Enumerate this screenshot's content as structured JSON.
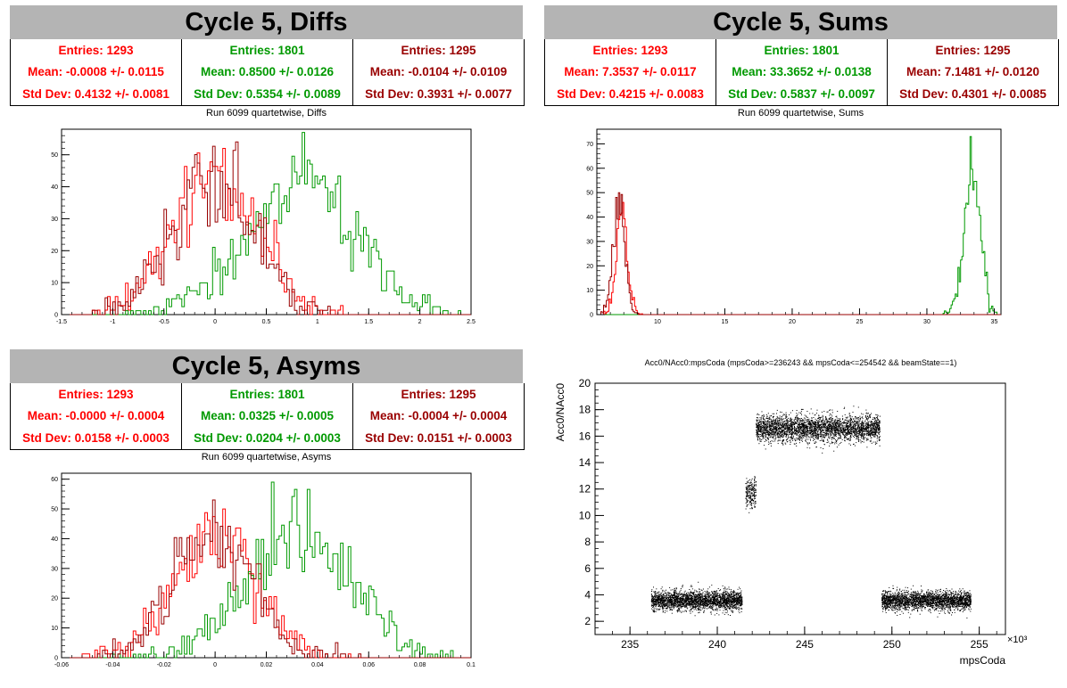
{
  "panels": {
    "diffs": {
      "title": "Cycle 5, Diffs",
      "stats": [
        {
          "entries": "Entries: 1293",
          "mean": "Mean: -0.0008 +/- 0.0115",
          "std": "Std Dev: 0.4132 +/- 0.0081"
        },
        {
          "entries": "Entries: 1801",
          "mean": "Mean: 0.8500 +/- 0.0126",
          "std": "Std Dev: 0.5354 +/- 0.0089"
        },
        {
          "entries": "Entries: 1295",
          "mean": "Mean: -0.0104 +/- 0.0109",
          "std": "Std Dev: 0.3931 +/- 0.0077"
        }
      ],
      "subtitle": "Run 6099 quartetwise, Diffs"
    },
    "sums": {
      "title": "Cycle 5, Sums",
      "stats": [
        {
          "entries": "Entries: 1293",
          "mean": "Mean: 7.3537 +/- 0.0117",
          "std": "Std Dev: 0.4215 +/- 0.0083"
        },
        {
          "entries": "Entries: 1801",
          "mean": "Mean: 33.3652 +/- 0.0138",
          "std": "Std Dev: 0.5837 +/- 0.0097"
        },
        {
          "entries": "Entries: 1295",
          "mean": "Mean: 7.1481 +/- 0.0120",
          "std": "Std Dev: 0.4301 +/- 0.0085"
        }
      ],
      "subtitle": "Run 6099 quartetwise, Sums"
    },
    "asyms": {
      "title": "Cycle 5, Asyms",
      "stats": [
        {
          "entries": "Entries: 1293",
          "mean": "Mean: -0.0000 +/- 0.0004",
          "std": "Std Dev: 0.0158 +/- 0.0003"
        },
        {
          "entries": "Entries: 1801",
          "mean": "Mean: 0.0325 +/- 0.0005",
          "std": "Std Dev: 0.0204 +/- 0.0003"
        },
        {
          "entries": "Entries: 1295",
          "mean": "Mean: -0.0004 +/- 0.0004",
          "std": "Std Dev: 0.0151 +/- 0.0003"
        }
      ],
      "subtitle": "Run 6099 quartetwise, Asyms"
    },
    "scatter": {
      "title": "Acc0/NAcc0:mpsCoda (mpsCoda>=236243 && mpsCoda<=254542 && beamState==1)"
    }
  },
  "colors": {
    "red": "#ff0000",
    "green": "#009900",
    "darkred": "#990000",
    "title_bg": "#b4b4b4"
  },
  "chart_data": [
    {
      "type": "histogram",
      "name": "diffs",
      "xlim": [
        -1.5,
        2.5
      ],
      "ylim": [
        0,
        58
      ],
      "xticks": [
        -1.5,
        -1,
        -0.5,
        0,
        0.5,
        1,
        1.5,
        2,
        2.5
      ],
      "xtick_labels": [
        "-1.5",
        "-1",
        "-0.5",
        "0",
        "0.5",
        "1",
        "1.5",
        "2",
        "2.5"
      ],
      "yticks": [
        0,
        10,
        20,
        30,
        40,
        50
      ],
      "grid": false,
      "series": [
        {
          "color": "#ff0000",
          "mean": -0.0008,
          "std": 0.4132,
          "entries": 1293,
          "bin_width": 0.025,
          "peak": 52
        },
        {
          "color": "#009900",
          "mean": 0.85,
          "std": 0.5354,
          "entries": 1801,
          "bin_width": 0.025,
          "peak": 57
        },
        {
          "color": "#990000",
          "mean": -0.0104,
          "std": 0.3931,
          "entries": 1295,
          "bin_width": 0.025,
          "peak": 54
        }
      ]
    },
    {
      "type": "histogram",
      "name": "sums",
      "xlim": [
        5.5,
        35.5
      ],
      "ylim": [
        0,
        76
      ],
      "xticks": [
        10,
        15,
        20,
        25,
        30,
        35
      ],
      "xtick_labels": [
        "10",
        "15",
        "20",
        "25",
        "30",
        "35"
      ],
      "yticks": [
        0,
        10,
        20,
        30,
        40,
        50,
        60,
        70
      ],
      "grid": false,
      "series": [
        {
          "color": "#ff0000",
          "mean": 7.3537,
          "std": 0.4215,
          "entries": 1293,
          "bin_width": 0.1,
          "peak": 46
        },
        {
          "color": "#009900",
          "mean": 33.3652,
          "std": 0.5837,
          "entries": 1801,
          "bin_width": 0.1,
          "peak": 73
        },
        {
          "color": "#990000",
          "mean": 7.1481,
          "std": 0.4301,
          "entries": 1295,
          "bin_width": 0.1,
          "peak": 50
        }
      ]
    },
    {
      "type": "histogram",
      "name": "asyms",
      "xlim": [
        -0.06,
        0.1
      ],
      "ylim": [
        0,
        62
      ],
      "xticks": [
        -0.06,
        -0.04,
        -0.02,
        0,
        0.02,
        0.04,
        0.06,
        0.08,
        0.1
      ],
      "xtick_labels": [
        "-0.06",
        "-0.04",
        "-0.02",
        "0",
        "0.02",
        "0.04",
        "0.06",
        "0.08",
        "0.1"
      ],
      "yticks": [
        0,
        10,
        20,
        30,
        40,
        50,
        60
      ],
      "grid": false,
      "series": [
        {
          "color": "#ff0000",
          "mean": 0.0,
          "std": 0.0158,
          "entries": 1293,
          "bin_width": 0.001,
          "peak": 50
        },
        {
          "color": "#009900",
          "mean": 0.0325,
          "std": 0.0204,
          "entries": 1801,
          "bin_width": 0.001,
          "peak": 59
        },
        {
          "color": "#990000",
          "mean": -0.0004,
          "std": 0.0151,
          "entries": 1295,
          "bin_width": 0.001,
          "peak": 53
        }
      ]
    },
    {
      "type": "scatter",
      "name": "scatter",
      "xlim": [
        233,
        256.5
      ],
      "ylim": [
        1,
        20
      ],
      "xticks": [
        235,
        240,
        245,
        250,
        255
      ],
      "xtick_labels": [
        "235",
        "240",
        "245",
        "250",
        "255"
      ],
      "yticks": [
        2,
        4,
        6,
        8,
        10,
        12,
        14,
        16,
        18,
        20
      ],
      "ytick_labels": [
        "2",
        "4",
        "6",
        "8",
        "10",
        "12",
        "14",
        "16",
        "18",
        "20"
      ],
      "xlabel": "mpsCoda",
      "ylabel": "Acc0/NAcc0",
      "x_exponent": "×10³",
      "grid": false,
      "clusters": [
        {
          "x_range": [
            236.2,
            241.4
          ],
          "y_mean": 3.6,
          "y_spread": 0.8,
          "count": 2600
        },
        {
          "x_range": [
            241.6,
            242.2
          ],
          "y_mean": 11.7,
          "y_spread": 1.3,
          "count": 220
        },
        {
          "x_range": [
            242.2,
            249.3
          ],
          "y_mean": 16.6,
          "y_spread": 1.1,
          "count": 3200
        },
        {
          "x_range": [
            249.4,
            254.5
          ],
          "y_mean": 3.6,
          "y_spread": 0.8,
          "count": 2500
        }
      ]
    }
  ]
}
